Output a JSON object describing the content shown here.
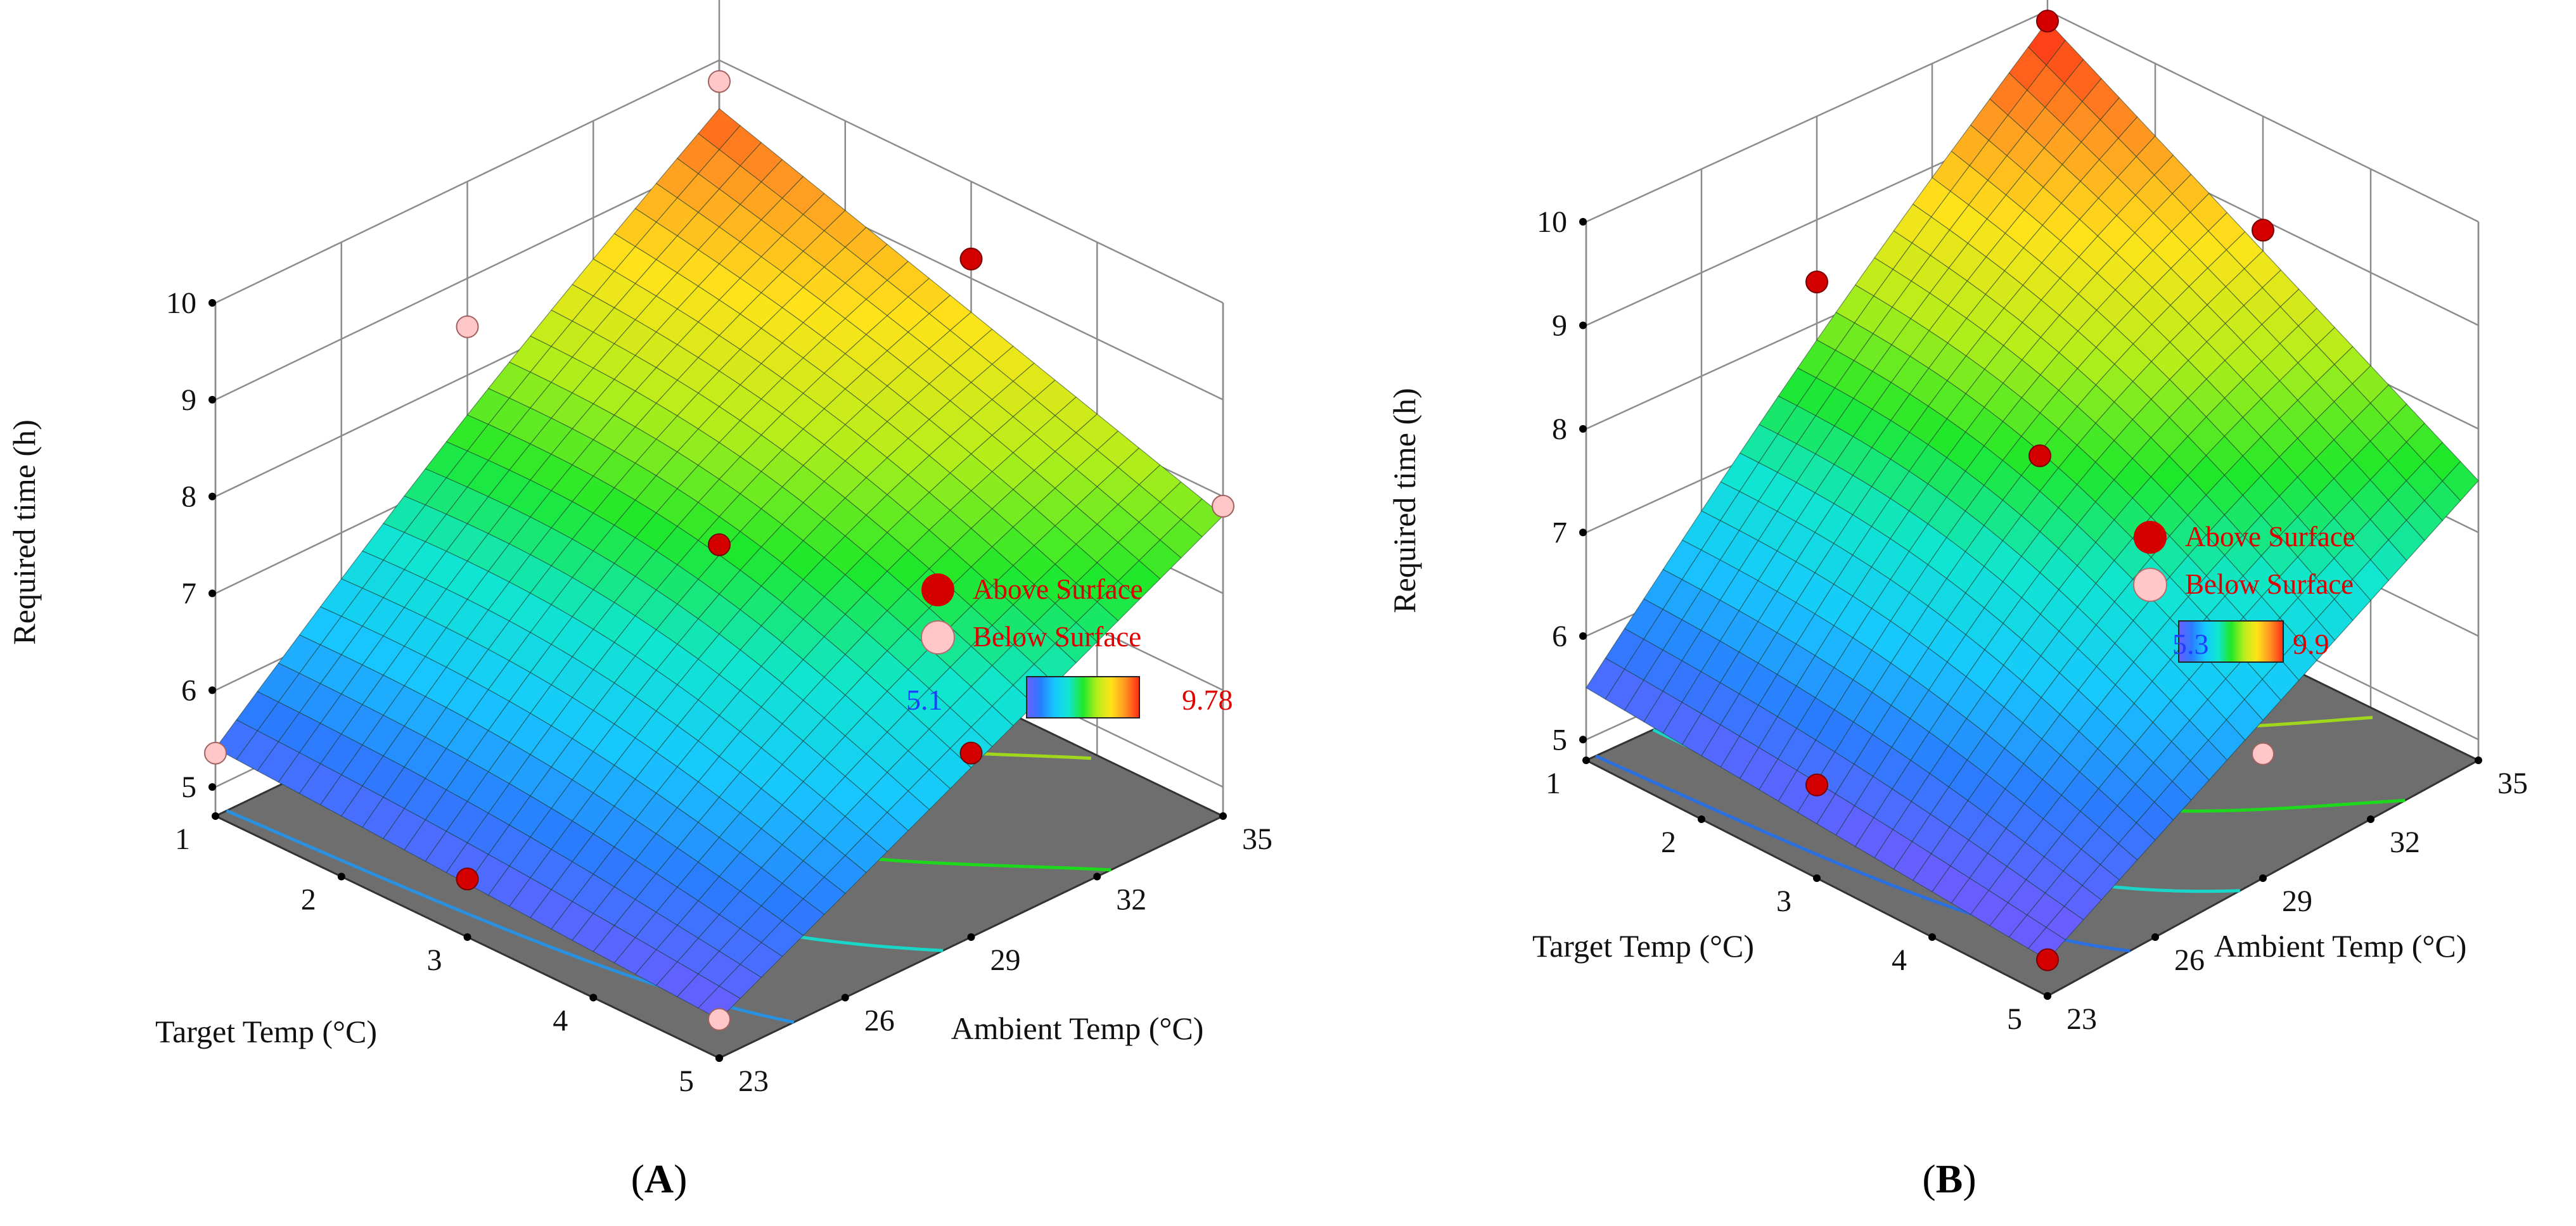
{
  "figure": {
    "panels": [
      {
        "panel_label": "A"
      },
      {
        "panel_label": "B"
      }
    ]
  },
  "chart_data": [
    {
      "type": "surface3d",
      "panel": "A",
      "zlabel": "Required time (h)",
      "xlabel": "Ambient Temp (°C)",
      "ylabel": "Target Temp (°C)",
      "x_ticks": [
        "23",
        "26",
        "29",
        "32",
        "35"
      ],
      "y_ticks": [
        "1",
        "2",
        "3",
        "4",
        "5"
      ],
      "z_ticks": [
        "5",
        "6",
        "7",
        "8",
        "9",
        "10"
      ],
      "xlim": [
        23,
        35
      ],
      "ylim": [
        1,
        5
      ],
      "zlim": [
        4.7,
        10
      ],
      "legend": {
        "above": "Above Surface",
        "below": "Below Surface"
      },
      "colorbar": {
        "min_label": "5.1",
        "max_label": "9.78",
        "min": 5.1,
        "max": 9.78
      },
      "surface_corners": {
        "x23_y1": 5.4,
        "x35_y1": 9.5,
        "x23_y5": 5.1,
        "x35_y5": 7.8
      },
      "design_points": [
        {
          "x": 29,
          "y": 3,
          "z": 7.5,
          "position": "above"
        },
        {
          "x": 29,
          "y": 5,
          "z": 6.6,
          "position": "above"
        },
        {
          "x": 23,
          "y": 3,
          "z": 5.3,
          "position": "above"
        },
        {
          "x": 35,
          "y": 3,
          "z": 9.2,
          "position": "above"
        },
        {
          "x": 29,
          "y": 1,
          "z": 8.5,
          "position": "below"
        },
        {
          "x": 23,
          "y": 5,
          "z": 5.1,
          "position": "below"
        },
        {
          "x": 35,
          "y": 5,
          "z": 7.9,
          "position": "below"
        },
        {
          "x": 35,
          "y": 1,
          "z": 9.78,
          "position": "below"
        },
        {
          "x": 23,
          "y": 1,
          "z": 5.35,
          "position": "below"
        }
      ],
      "contour_levels": [
        5.5,
        6.3,
        7.2,
        8.2,
        9.2
      ]
    },
    {
      "type": "surface3d",
      "panel": "B",
      "zlabel": "Required time (h)",
      "xlabel": "Ambient Temp (°C)",
      "ylabel": "Target Temp (°C)",
      "x_ticks": [
        "23",
        "26",
        "29",
        "32",
        "35"
      ],
      "y_ticks": [
        "1",
        "2",
        "3",
        "4",
        "5"
      ],
      "z_ticks": [
        "5",
        "6",
        "7",
        "8",
        "9",
        "10"
      ],
      "xlim": [
        23,
        35
      ],
      "ylim": [
        1,
        5
      ],
      "zlim": [
        4.8,
        10
      ],
      "legend": {
        "above": "Above Surface",
        "below": "Below Surface"
      },
      "colorbar": {
        "min_label": "5.3",
        "max_label": "9.9",
        "min": 5.3,
        "max": 9.9
      },
      "surface_corners": {
        "x23_y1": 5.5,
        "x35_y1": 9.9,
        "x23_y5": 5.15,
        "x35_y5": 7.5
      },
      "design_points": [
        {
          "x": 23,
          "y": 5,
          "z": 5.15,
          "position": "above"
        },
        {
          "x": 23,
          "y": 3,
          "z": 5.7,
          "position": "above"
        },
        {
          "x": 29,
          "y": 1,
          "z": 8.4,
          "position": "above"
        },
        {
          "x": 29,
          "y": 3,
          "z": 7.8,
          "position": "above"
        },
        {
          "x": 35,
          "y": 3,
          "z": 8.9,
          "position": "above"
        },
        {
          "x": 35,
          "y": 1,
          "z": 9.9,
          "position": "above"
        },
        {
          "x": 29,
          "y": 5,
          "z": 6.0,
          "position": "below"
        }
      ],
      "contour_levels": [
        5.6,
        6.2,
        7.1,
        8.0,
        8.9
      ]
    }
  ],
  "colors": {
    "floor": "#6e6e6e",
    "grid": "#8c8c8c",
    "above_point": "#d40000",
    "below_point": "#ffc7c7",
    "legend_text": "#e00000",
    "colorbar_min_text": "#1f3fff"
  }
}
